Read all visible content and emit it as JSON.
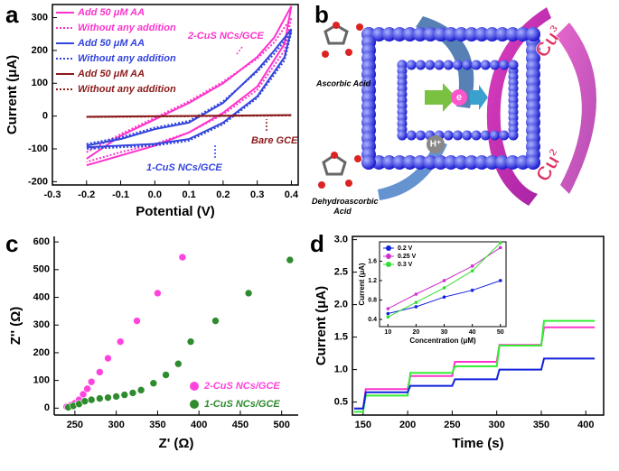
{
  "chart_data": [
    {
      "panel_label": "a",
      "type": "line",
      "xlabel": "Potential (V)",
      "ylabel": "Current (μA)",
      "xlim": [
        -0.3,
        0.42
      ],
      "ylim": [
        -210,
        340
      ],
      "xticks": [
        -0.3,
        -0.2,
        -0.1,
        {
          "value": 0,
          "label": "0.0"
        },
        0.1,
        0.2,
        0.3,
        0.4
      ],
      "yticks": [
        -200,
        -100,
        0,
        100,
        200,
        300
      ],
      "series": [
        {
          "name": "Add 50 μM AA",
          "color": "#ff33cc",
          "style": "solid",
          "x": [
            -0.2,
            -0.1,
            0,
            0.1,
            0.2,
            0.3,
            0.35,
            0.4,
            0.38,
            0.3,
            0.2,
            0.1,
            0,
            -0.1,
            -0.2
          ],
          "values": [
            -130,
            -60,
            -10,
            40,
            100,
            180,
            240,
            335,
            220,
            90,
            10,
            -50,
            -90,
            -120,
            -150
          ]
        },
        {
          "name": "Without any addition",
          "color": "#ff33cc",
          "style": "dotted",
          "x": [
            -0.2,
            -0.1,
            0,
            0.1,
            0.2,
            0.3,
            0.35,
            0.4,
            0.38,
            0.3,
            0.2,
            0.1,
            0,
            -0.1,
            -0.2
          ],
          "values": [
            -110,
            -55,
            -5,
            45,
            105,
            175,
            225,
            300,
            200,
            80,
            5,
            -50,
            -85,
            -110,
            -140
          ]
        },
        {
          "name": "Add 50 μM AA",
          "color": "#3344dd",
          "style": "solid",
          "x": [
            -0.2,
            -0.1,
            0,
            0.1,
            0.2,
            0.3,
            0.35,
            0.4,
            0.38,
            0.3,
            0.2,
            0.1,
            0,
            -0.1,
            -0.2
          ],
          "values": [
            -90,
            -70,
            -40,
            -20,
            40,
            140,
            200,
            265,
            180,
            60,
            -20,
            -70,
            -85,
            -90,
            -95
          ]
        },
        {
          "name": "Without any addition",
          "color": "#3344dd",
          "style": "dotted",
          "x": [
            -0.2,
            -0.1,
            0,
            0.1,
            0.2,
            0.3,
            0.35,
            0.4,
            0.38,
            0.3,
            0.2,
            0.1,
            0,
            -0.1,
            -0.2
          ],
          "values": [
            -85,
            -65,
            -35,
            -15,
            45,
            135,
            190,
            255,
            170,
            55,
            -25,
            -75,
            -90,
            -95,
            -100
          ]
        },
        {
          "name": "Add 50 μM AA",
          "color": "#8b1a1a",
          "style": "solid",
          "x": [
            -0.2,
            0.4,
            -0.2
          ],
          "values": [
            -2,
            3,
            -2
          ]
        },
        {
          "name": "Without any addition",
          "color": "#8b1a1a",
          "style": "dotted",
          "x": [
            -0.2,
            0.4,
            -0.2
          ],
          "values": [
            -3,
            2,
            -3
          ]
        }
      ],
      "annotations": [
        "2-CuS NCs/GCE",
        "1-CuS NCs/GCE",
        "Bare GCE"
      ]
    },
    {
      "panel_label": "c",
      "type": "scatter",
      "xlabel": "Z' (Ω)",
      "ylabel": "Z'' (Ω)",
      "xlim": [
        225,
        520
      ],
      "ylim": [
        -25,
        620
      ],
      "xticks": [
        250,
        300,
        350,
        400,
        450,
        500
      ],
      "yticks": [
        0,
        100,
        200,
        300,
        400,
        500,
        600
      ],
      "series": [
        {
          "name": "2-CuS NCs/GCE",
          "color": "#ff44dd",
          "x": [
            240,
            245,
            250,
            255,
            260,
            265,
            270,
            280,
            290,
            305,
            325,
            350,
            380
          ],
          "values": [
            5,
            10,
            18,
            30,
            50,
            70,
            95,
            130,
            180,
            240,
            315,
            415,
            545
          ]
        },
        {
          "name": "1-CuS NCs/GCE",
          "color": "#2e8b2e",
          "x": [
            242,
            248,
            255,
            262,
            270,
            280,
            290,
            300,
            310,
            320,
            330,
            345,
            360,
            375,
            390,
            420,
            460,
            510
          ],
          "values": [
            3,
            8,
            15,
            25,
            30,
            35,
            38,
            42,
            48,
            55,
            65,
            90,
            120,
            160,
            240,
            315,
            415,
            535
          ]
        }
      ]
    },
    {
      "panel_label": "d",
      "type": "line",
      "xlabel": "Time (s)",
      "ylabel": "Current (μA)",
      "xlim": [
        138,
        420
      ],
      "ylim": [
        0.3,
        3.05
      ],
      "xticks": [
        150,
        200,
        250,
        300,
        350,
        400
      ],
      "yticks": [
        0.5,
        {
          "value": 1,
          "label": "1.0"
        },
        1.5,
        {
          "value": 2,
          "label": "2.0"
        },
        2.5,
        {
          "value": 3,
          "label": "3.0"
        }
      ],
      "series": [
        {
          "color": "#ff33cc",
          "style": "solid",
          "x": [
            140,
            150,
            153,
            200,
            203,
            250,
            253,
            300,
            303,
            350,
            353,
            410
          ],
          "values": [
            0.4,
            0.4,
            0.7,
            0.7,
            0.9,
            0.9,
            1.12,
            1.12,
            1.38,
            1.38,
            1.65,
            1.65
          ]
        },
        {
          "color": "#33ee33",
          "style": "solid",
          "x": [
            140,
            150,
            153,
            200,
            203,
            250,
            253,
            300,
            303,
            350,
            353,
            410
          ],
          "values": [
            0.35,
            0.35,
            0.6,
            0.6,
            0.95,
            0.95,
            1.05,
            1.05,
            1.37,
            1.37,
            1.75,
            1.75
          ]
        },
        {
          "color": "#1122dd",
          "style": "solid",
          "x": [
            140,
            150,
            153,
            200,
            203,
            250,
            253,
            300,
            303,
            350,
            353,
            410
          ],
          "values": [
            0.4,
            0.4,
            0.65,
            0.65,
            0.75,
            0.75,
            0.85,
            0.85,
            1.0,
            1.0,
            1.17,
            1.17
          ]
        }
      ]
    },
    {
      "type": "line",
      "xlabel": "Concentration (μM)",
      "ylabel": "Current (μA)",
      "markers": true,
      "xlim": [
        7,
        52
      ],
      "ylim": [
        0.25,
        2.0
      ],
      "xticks": [
        10,
        20,
        30,
        40,
        50
      ],
      "yticks": [
        0.4,
        0.8,
        1.2,
        1.6
      ],
      "series": [
        {
          "name": "0.2 V",
          "color": "#1122dd",
          "style": "solid",
          "x": [
            10,
            20,
            30,
            40,
            50
          ],
          "values": [
            0.52,
            0.66,
            0.86,
            1.0,
            1.2
          ]
        },
        {
          "name": "0.25 V",
          "color": "#cc33cc",
          "style": "solid",
          "x": [
            10,
            20,
            30,
            40,
            50
          ],
          "values": [
            0.62,
            0.92,
            1.2,
            1.5,
            1.88
          ]
        },
        {
          "name": "0.3 V",
          "color": "#33dd33",
          "style": "solid",
          "x": [
            10,
            20,
            30,
            40,
            50
          ],
          "values": [
            0.45,
            0.75,
            1.05,
            1.4,
            1.98
          ]
        }
      ]
    }
  ],
  "diagram": {
    "panel_label": "b",
    "molecules": [
      "Ascorbic Acid",
      "Dehydroascorbic Acid"
    ],
    "electron": "e",
    "proton": "H⁺",
    "ions": [
      "Cu³⁺",
      "Cu²⁺"
    ]
  }
}
